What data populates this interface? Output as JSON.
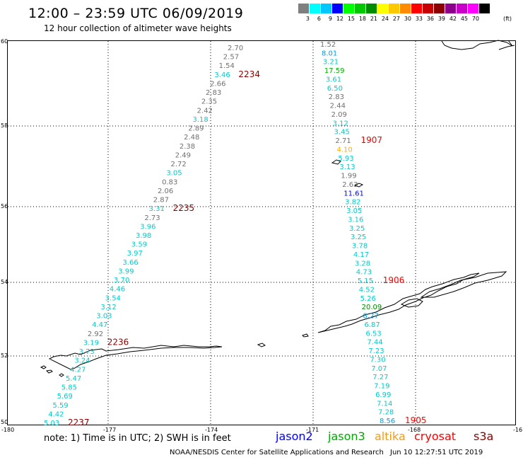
{
  "header": {
    "title": "12:00 – 23:59 UTC 06/09/2019",
    "subtitle": "12 hour collection of altimeter wave heights"
  },
  "legend": {
    "colors": [
      "#7f7f7f",
      "#00ffff",
      "#00c8ff",
      "#0000ff",
      "#00ff00",
      "#00c800",
      "#008c00",
      "#ffff00",
      "#ffc800",
      "#ff8c00",
      "#ff0000",
      "#c80000",
      "#8c0000",
      "#8c008c",
      "#c800c8",
      "#ff00ff",
      "#000000"
    ],
    "labels": [
      "3",
      "6",
      "9",
      "12",
      "15",
      "18",
      "21",
      "24",
      "27",
      "30",
      "33",
      "36",
      "39",
      "42",
      "45",
      "70"
    ],
    "unit": "(ft)"
  },
  "map": {
    "lat_labels": [
      "60",
      "58",
      "56",
      "54",
      "52",
      "50"
    ],
    "lon_labels": [
      "-180",
      "-177",
      "-174",
      "-171",
      "-168",
      "-16"
    ],
    "track_west": [
      {
        "v": "2.70",
        "c": "#707070"
      },
      {
        "v": "2.57",
        "c": "#707070"
      },
      {
        "v": "1.54",
        "c": "#707070"
      },
      {
        "v": "3.46",
        "c": "#00cccc",
        "time": "2234"
      },
      {
        "v": "2.66",
        "c": "#707070"
      },
      {
        "v": "2.83",
        "c": "#707070"
      },
      {
        "v": "2.35",
        "c": "#707070"
      },
      {
        "v": "2.42",
        "c": "#707070"
      },
      {
        "v": "3.18",
        "c": "#00cccc"
      },
      {
        "v": "2.89",
        "c": "#707070"
      },
      {
        "v": "2.48",
        "c": "#707070"
      },
      {
        "v": "2.38",
        "c": "#707070"
      },
      {
        "v": "2.49",
        "c": "#707070"
      },
      {
        "v": "2.72",
        "c": "#707070"
      },
      {
        "v": "3.05",
        "c": "#00cccc"
      },
      {
        "v": "0.83",
        "c": "#707070"
      },
      {
        "v": "2.06",
        "c": "#707070"
      },
      {
        "v": "2.87",
        "c": "#707070"
      },
      {
        "v": "3.31",
        "c": "#00cccc",
        "time": "2235"
      },
      {
        "v": "2.73",
        "c": "#707070"
      },
      {
        "v": "3.96",
        "c": "#00cccc"
      },
      {
        "v": "3.98",
        "c": "#00cccc"
      },
      {
        "v": "3.59",
        "c": "#00cccc"
      },
      {
        "v": "3.97",
        "c": "#00cccc"
      },
      {
        "v": "3.66",
        "c": "#00cccc"
      },
      {
        "v": "3.99",
        "c": "#00cccc"
      },
      {
        "v": "3.70",
        "c": "#00cccc"
      },
      {
        "v": "4.46",
        "c": "#00cccc"
      },
      {
        "v": "3.54",
        "c": "#00cccc"
      },
      {
        "v": "3.12",
        "c": "#00cccc"
      },
      {
        "v": "3.03",
        "c": "#00cccc"
      },
      {
        "v": "4.47",
        "c": "#00cccc"
      },
      {
        "v": "2.92",
        "c": "#707070"
      },
      {
        "v": "3.19",
        "c": "#00cccc",
        "time": "2236"
      },
      {
        "v": "3.73",
        "c": "#00cccc"
      },
      {
        "v": "3.24",
        "c": "#00cccc"
      },
      {
        "v": "4.27",
        "c": "#00cccc"
      },
      {
        "v": "5.47",
        "c": "#00cccc"
      },
      {
        "v": "5.85",
        "c": "#00cccc"
      },
      {
        "v": "5.69",
        "c": "#00cccc"
      },
      {
        "v": "5.59",
        "c": "#00cccc"
      },
      {
        "v": "4.42",
        "c": "#00cccc"
      },
      {
        "v": "5.03",
        "c": "#00cccc",
        "time": "2237"
      }
    ],
    "track_east": [
      {
        "v": "1.52",
        "c": "#707070"
      },
      {
        "v": "8.01",
        "c": "#00a0e0"
      },
      {
        "v": "3.21",
        "c": "#00cccc"
      },
      {
        "v": "17.59",
        "c": "#00b000"
      },
      {
        "v": "3.61",
        "c": "#00cccc"
      },
      {
        "v": "6.50",
        "c": "#00cccc"
      },
      {
        "v": "2.83",
        "c": "#707070"
      },
      {
        "v": "2.44",
        "c": "#707070"
      },
      {
        "v": "2.09",
        "c": "#707070"
      },
      {
        "v": "3.12",
        "c": "#00cccc"
      },
      {
        "v": "3.45",
        "c": "#00cccc"
      },
      {
        "v": "2.71",
        "c": "#707070",
        "time": "1907"
      },
      {
        "v": "4.10",
        "c": "#ffb000"
      },
      {
        "v": "5.93",
        "c": "#00cccc"
      },
      {
        "v": "3.13",
        "c": "#00cccc"
      },
      {
        "v": "1.99",
        "c": "#707070"
      },
      {
        "v": "2.63",
        "c": "#707070"
      },
      {
        "v": "11.61",
        "c": "#0000ff"
      },
      {
        "v": "3.82",
        "c": "#00cccc"
      },
      {
        "v": "3.05",
        "c": "#00cccc"
      },
      {
        "v": "3.16",
        "c": "#00cccc"
      },
      {
        "v": "3.25",
        "c": "#00cccc"
      },
      {
        "v": "3.25",
        "c": "#00cccc"
      },
      {
        "v": "3.78",
        "c": "#00cccc"
      },
      {
        "v": "4.17",
        "c": "#00cccc"
      },
      {
        "v": "3.28",
        "c": "#00cccc"
      },
      {
        "v": "4.73",
        "c": "#00cccc"
      },
      {
        "v": "5.15",
        "c": "#00cccc",
        "time": "1906"
      },
      {
        "v": "4.52",
        "c": "#00cccc"
      },
      {
        "v": "5.26",
        "c": "#00cccc"
      },
      {
        "v": "20.09",
        "c": "#008800"
      },
      {
        "v": "8.27",
        "c": "#00a0e0"
      },
      {
        "v": "6.87",
        "c": "#00cccc"
      },
      {
        "v": "6.53",
        "c": "#00cccc"
      },
      {
        "v": "7.44",
        "c": "#00cccc"
      },
      {
        "v": "7.23",
        "c": "#00cccc"
      },
      {
        "v": "7.30",
        "c": "#00cccc"
      },
      {
        "v": "7.07",
        "c": "#00cccc"
      },
      {
        "v": "7.27",
        "c": "#00cccc"
      },
      {
        "v": "7.19",
        "c": "#00cccc"
      },
      {
        "v": "6.99",
        "c": "#00cccc"
      },
      {
        "v": "7.14",
        "c": "#00cccc"
      },
      {
        "v": "7.28",
        "c": "#00cccc"
      },
      {
        "v": "8.56",
        "c": "#00a0e0",
        "time": "1905"
      }
    ],
    "time_color_west": "#8b0000",
    "time_color_east": "#ff0000"
  },
  "footer": {
    "note": "note:  1) Time is in UTC;  2) SWH is in feet",
    "missions": [
      {
        "name": "jason2",
        "color": "#0000ff"
      },
      {
        "name": "jason3",
        "color": "#00aa00"
      },
      {
        "name": "altika",
        "color": "#ff9900"
      },
      {
        "name": "cryosat",
        "color": "#ff0000"
      },
      {
        "name": "s3a",
        "color": "#8b0000"
      }
    ],
    "credit": "NOAA/NESDIS Center for Satellite Applications and Research",
    "timestamp": "Jun 10 12:27:51 UTC 2019"
  }
}
